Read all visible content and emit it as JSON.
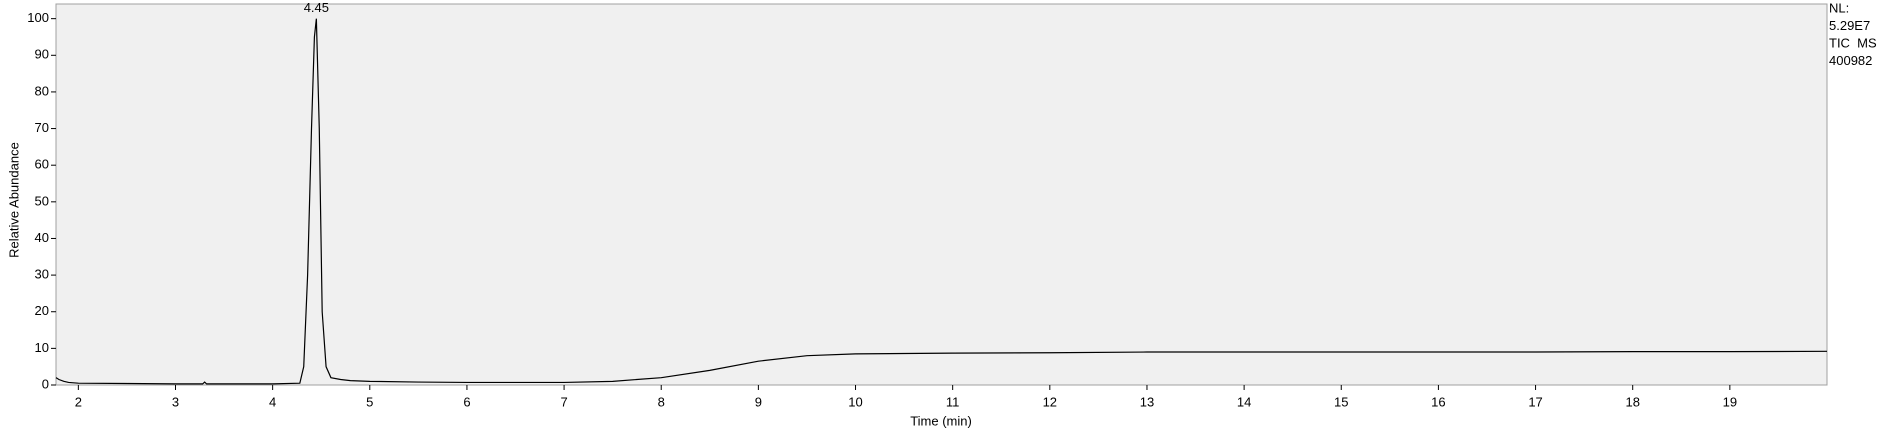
{
  "chart_data": {
    "type": "line",
    "xlabel": "Time (min)",
    "ylabel": "Relative Abundance",
    "x": [
      1.77,
      1.8,
      1.85,
      1.9,
      2.0,
      2.5,
      3.0,
      3.28,
      3.3,
      3.32,
      3.5,
      4.0,
      4.28,
      4.32,
      4.36,
      4.4,
      4.43,
      4.45,
      4.48,
      4.51,
      4.55,
      4.6,
      4.7,
      4.8,
      5.0,
      5.5,
      6.0,
      6.5,
      7.0,
      7.5,
      8.0,
      8.5,
      9.0,
      9.5,
      10.0,
      10.5,
      11.0,
      12.0,
      13.0,
      14.0,
      15.0,
      16.0,
      17.0,
      18.0,
      19.0,
      20.0
    ],
    "values": [
      2,
      1.5,
      1,
      0.7,
      0.5,
      0.4,
      0.3,
      0.3,
      0.8,
      0.3,
      0.3,
      0.3,
      0.5,
      5,
      30,
      70,
      95,
      100,
      70,
      20,
      5,
      2,
      1.5,
      1.2,
      1,
      0.8,
      0.7,
      0.7,
      0.7,
      1,
      2,
      4,
      6.5,
      8,
      8.5,
      8.6,
      8.7,
      8.8,
      9,
      9,
      9,
      9,
      9,
      9.1,
      9.1,
      9.2
    ],
    "color": "#000000",
    "xlim": [
      1.77,
      20.0
    ],
    "ylim": [
      0,
      104
    ],
    "xticks": [
      2,
      3,
      4,
      5,
      6,
      7,
      8,
      9,
      10,
      11,
      12,
      13,
      14,
      15,
      16,
      17,
      18,
      19
    ],
    "yticks": [
      0,
      10,
      20,
      30,
      40,
      50,
      60,
      70,
      80,
      90,
      100
    ],
    "annotations": [
      {
        "text": "4.45",
        "x": 4.45,
        "y": 100
      }
    ],
    "side_labels": [
      "NL:",
      "5.29E7",
      "TIC  MS",
      "400982"
    ]
  }
}
